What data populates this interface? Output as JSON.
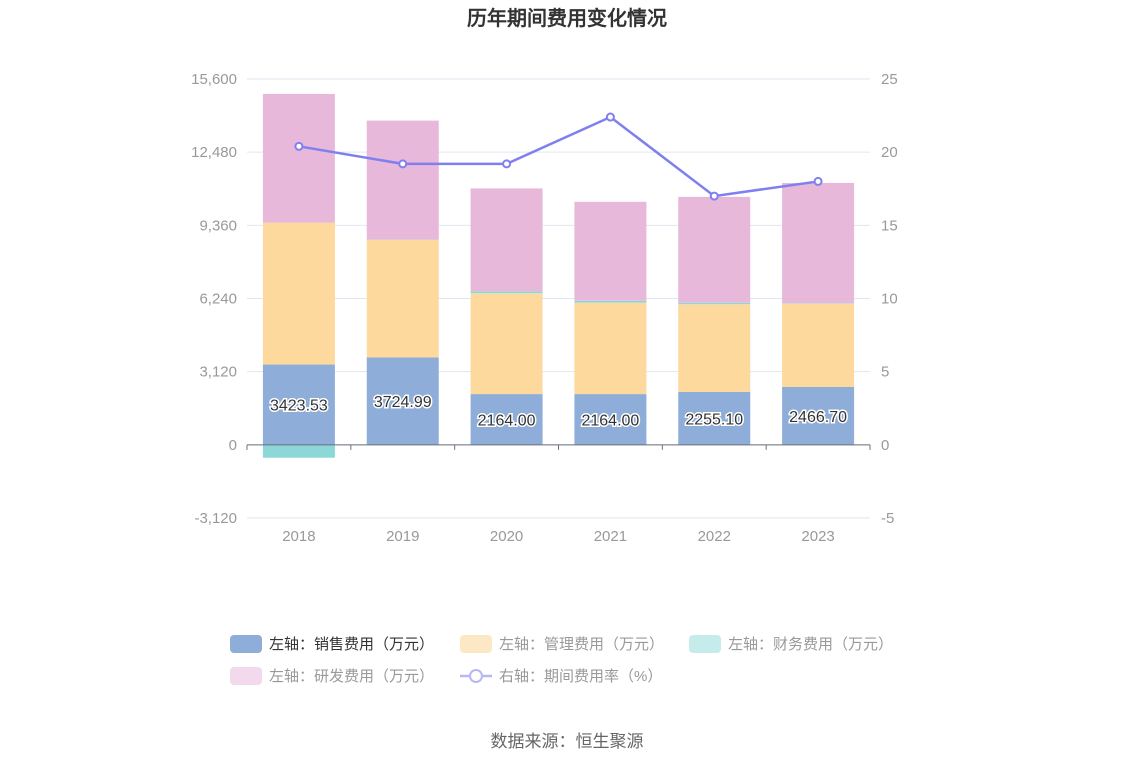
{
  "chart_data": {
    "type": "bar",
    "title": "历年期间费用变化情况",
    "categories": [
      "2018",
      "2019",
      "2020",
      "2021",
      "2022",
      "2023"
    ],
    "left_axis": {
      "ticks": [
        "15,600",
        "12,480",
        "9,360",
        "6,240",
        "3,120",
        "0",
        "-3,120"
      ],
      "ylim": [
        -3120,
        15600
      ]
    },
    "right_axis": {
      "ticks": [
        "25",
        "20",
        "15",
        "10",
        "5",
        "0",
        "-5"
      ],
      "ylim": [
        -5,
        25
      ]
    },
    "stacked": true,
    "series": [
      {
        "name": "左轴：销售费用（万元）",
        "axis": "left",
        "color": "#8eadd9",
        "values": [
          3423.53,
          3724.99,
          2164.0,
          2164.0,
          2255.1,
          2466.7
        ],
        "labels": [
          "3423.53",
          "3724.99",
          "2164.00",
          "2164.00",
          "2255.10",
          "2466.70"
        ]
      },
      {
        "name": "左轴：管理费用（万元）",
        "axis": "left",
        "color": "#fed99d",
        "values": [
          6050,
          5020,
          4300,
          3900,
          3740,
          3550
        ]
      },
      {
        "name": "左轴：财务费用（万元）",
        "axis": "left",
        "color": "#8cd8d8",
        "values": [
          -550,
          10,
          80,
          80,
          60,
          20
        ]
      },
      {
        "name": "左轴：研发费用（万元）",
        "axis": "left",
        "color": "#e7b8da",
        "values": [
          5490,
          5070,
          4390,
          4220,
          4520,
          5130
        ]
      },
      {
        "name": "右轴：期间费用率（%）",
        "axis": "right",
        "type": "line",
        "color": "#7f7ff0",
        "values": [
          20.4,
          19.2,
          19.2,
          22.4,
          17.0,
          18.0
        ]
      }
    ],
    "grid": true,
    "legend_position": "bottom"
  },
  "legend_active": [
    true,
    false,
    false,
    false,
    false
  ],
  "source": "数据来源：恒生聚源"
}
